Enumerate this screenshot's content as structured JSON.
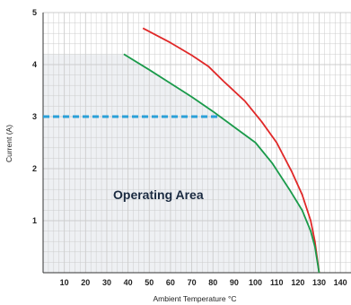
{
  "chart_data": {
    "type": "line",
    "xlabel": "Ambient Temperature °C",
    "ylabel": "Current (A)",
    "xlim": [
      0,
      145
    ],
    "ylim": [
      0,
      5
    ],
    "x_ticks": [
      10,
      20,
      30,
      40,
      50,
      60,
      70,
      80,
      90,
      100,
      110,
      120,
      130,
      140
    ],
    "y_ticks": [
      1,
      2,
      3,
      4,
      5
    ],
    "grid": true,
    "annotation": "Operating Area",
    "colors": {
      "red": "#e02828",
      "green": "#1a9a4a",
      "dash": "#2aa0d8",
      "area": "#eef0f3",
      "grid": "#cccccc"
    },
    "series": [
      {
        "color": "#e02828",
        "x": [
          47,
          60,
          70,
          78,
          85,
          95,
          103,
          110,
          117,
          122,
          126,
          128,
          130
        ],
        "y": [
          4.7,
          4.42,
          4.18,
          3.96,
          3.68,
          3.3,
          2.9,
          2.5,
          1.95,
          1.5,
          1.0,
          0.6,
          0.0
        ]
      },
      {
        "color": "#1a9a4a",
        "x": [
          38,
          50,
          60,
          70,
          80,
          90,
          100,
          108,
          116,
          122,
          126,
          128,
          130
        ],
        "y": [
          4.2,
          3.9,
          3.64,
          3.38,
          3.1,
          2.8,
          2.5,
          2.1,
          1.6,
          1.2,
          0.8,
          0.5,
          0.0
        ]
      }
    ],
    "dashed_line": {
      "color": "#2aa0d8",
      "x": [
        0,
        82
      ],
      "y": [
        3,
        3
      ]
    },
    "operating_area": {
      "x": [
        0,
        38,
        50,
        60,
        70,
        80,
        90,
        100,
        108,
        116,
        122,
        126,
        128,
        130,
        130,
        0
      ],
      "y": [
        4.2,
        4.2,
        3.9,
        3.64,
        3.38,
        3.1,
        2.8,
        2.5,
        2.1,
        1.6,
        1.2,
        0.8,
        0.5,
        0.0,
        0.0,
        0.0
      ]
    }
  }
}
